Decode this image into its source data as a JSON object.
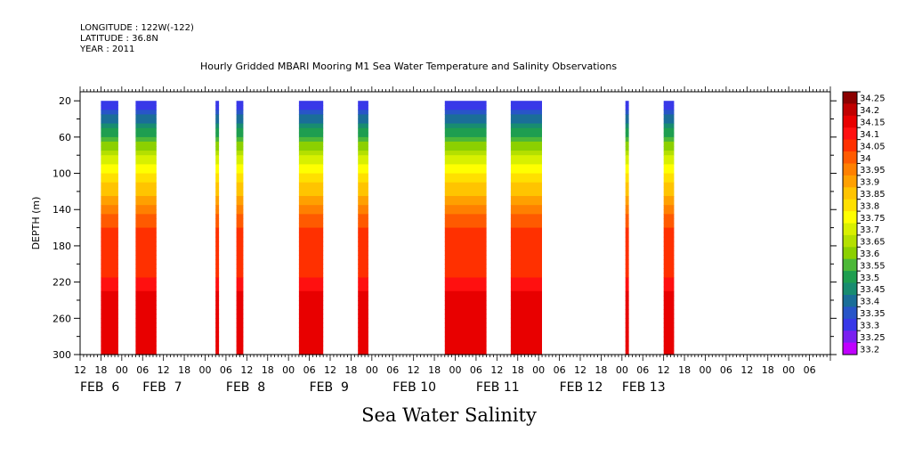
{
  "header": {
    "longitude": "LONGITUDE : 122W(-122)",
    "latitude": "LATITUDE : 36.8N",
    "year": "YEAR : 2011"
  },
  "footer_label": "Sea Water Salinity",
  "chart_data": {
    "type": "heatmap",
    "title": "Hourly Gridded MBARI Mooring M1 Sea Water Temperature and Salinity Observations",
    "xlabel": "",
    "ylabel": "DEPTH (m)",
    "ylim": [
      300,
      10
    ],
    "y_ticks": [
      20,
      60,
      100,
      140,
      180,
      220,
      260,
      300
    ],
    "x_range_hours": [
      -12,
      204
    ],
    "x_hour_ticks": [
      {
        "t": -12,
        "label": "12"
      },
      {
        "t": -6,
        "label": "18"
      },
      {
        "t": 0,
        "label": "00"
      },
      {
        "t": 6,
        "label": "06"
      },
      {
        "t": 12,
        "label": "12"
      },
      {
        "t": 18,
        "label": "18"
      },
      {
        "t": 24,
        "label": "00"
      },
      {
        "t": 30,
        "label": "06"
      },
      {
        "t": 36,
        "label": "12"
      },
      {
        "t": 42,
        "label": "18"
      },
      {
        "t": 48,
        "label": "00"
      },
      {
        "t": 54,
        "label": "06"
      },
      {
        "t": 60,
        "label": "12"
      },
      {
        "t": 66,
        "label": "18"
      },
      {
        "t": 72,
        "label": "00"
      },
      {
        "t": 78,
        "label": "06"
      },
      {
        "t": 84,
        "label": "12"
      },
      {
        "t": 90,
        "label": "18"
      },
      {
        "t": 96,
        "label": "00"
      },
      {
        "t": 102,
        "label": "06"
      },
      {
        "t": 108,
        "label": "12"
      },
      {
        "t": 114,
        "label": "18"
      },
      {
        "t": 120,
        "label": "00"
      },
      {
        "t": 126,
        "label": "06"
      },
      {
        "t": 132,
        "label": "12"
      },
      {
        "t": 138,
        "label": "18"
      },
      {
        "t": 144,
        "label": "00"
      },
      {
        "t": 150,
        "label": "06"
      },
      {
        "t": 156,
        "label": "12"
      },
      {
        "t": 162,
        "label": "18"
      },
      {
        "t": 168,
        "label": "00"
      },
      {
        "t": 174,
        "label": "06"
      },
      {
        "t": 180,
        "label": "12"
      },
      {
        "t": 186,
        "label": "18"
      },
      {
        "t": 192,
        "label": "00"
      },
      {
        "t": 198,
        "label": "06"
      }
    ],
    "date_labels": [
      {
        "t": -12,
        "label": "FEB  6"
      },
      {
        "t": 6,
        "label": "FEB  7"
      },
      {
        "t": 30,
        "label": "FEB  8"
      },
      {
        "t": 54,
        "label": "FEB  9"
      },
      {
        "t": 78,
        "label": "FEB 10"
      },
      {
        "t": 102,
        "label": "FEB 11"
      },
      {
        "t": 126,
        "label": "FEB 12"
      },
      {
        "t": 144,
        "label": "FEB 13"
      }
    ],
    "data_blocks_hours": [
      [
        -6,
        -1
      ],
      [
        4,
        10
      ],
      [
        27,
        28
      ],
      [
        33,
        35
      ],
      [
        51,
        58
      ],
      [
        68,
        71
      ],
      [
        93,
        105
      ],
      [
        112,
        121
      ],
      [
        145,
        146
      ],
      [
        156,
        159
      ]
    ],
    "colorbar": {
      "levels": [
        "34.25",
        "34.2",
        "34.15",
        "34.1",
        "34.05",
        "34",
        "33.95",
        "33.9",
        "33.85",
        "33.8",
        "33.75",
        "33.7",
        "33.65",
        "33.6",
        "33.55",
        "33.5",
        "33.45",
        "33.4",
        "33.35",
        "33.3",
        "33.25",
        "33.2"
      ],
      "colors": [
        "#8B0000",
        "#C00000",
        "#E80000",
        "#FF1010",
        "#FF3000",
        "#FF5A00",
        "#FF8000",
        "#FFA000",
        "#FFC400",
        "#FFE000",
        "#FFFF00",
        "#D8F000",
        "#B4E000",
        "#8CD000",
        "#4CB838",
        "#1E9E50",
        "#188C70",
        "#1A6E98",
        "#2855C8",
        "#3838E8",
        "#7A20F0",
        "#C000FF"
      ]
    },
    "salinity_profile": {
      "depths": [
        20,
        40,
        60,
        80,
        100,
        120,
        140,
        160,
        180,
        200,
        220,
        240,
        260,
        280,
        300
      ],
      "values": [
        33.3,
        33.42,
        33.55,
        33.7,
        33.8,
        33.88,
        33.98,
        34.05,
        34.05,
        34.06,
        34.12,
        34.17,
        34.2,
        34.17,
        34.15
      ]
    },
    "grid": false,
    "legend": "right"
  }
}
